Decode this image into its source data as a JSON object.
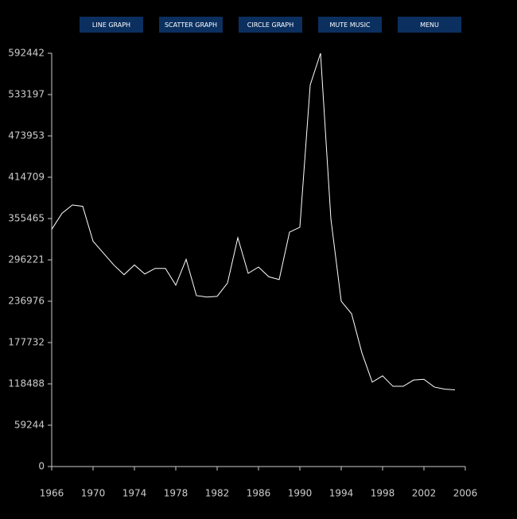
{
  "buttons": [
    "LINE GRAPH",
    "SCATTER GRAPH",
    "CIRCLE GRAPH",
    "MUTE MUSIC",
    "MENU"
  ],
  "chart_data": {
    "type": "line",
    "x": [
      1966,
      1967,
      1968,
      1969,
      1970,
      1971,
      1972,
      1973,
      1974,
      1975,
      1976,
      1977,
      1978,
      1979,
      1980,
      1981,
      1982,
      1983,
      1984,
      1985,
      1986,
      1987,
      1988,
      1989,
      1990,
      1991,
      1992,
      1993,
      1994,
      1995,
      1996,
      1997,
      1998,
      1999,
      2000,
      2001,
      2002,
      2003,
      2004,
      2005
    ],
    "values": [
      340000,
      363000,
      375000,
      373000,
      323000,
      306000,
      289000,
      275000,
      289000,
      276000,
      284000,
      284000,
      260000,
      297000,
      245000,
      243000,
      244000,
      263000,
      328000,
      277000,
      286000,
      272000,
      268000,
      336000,
      343000,
      547000,
      592442,
      355000,
      237000,
      219000,
      163000,
      121000,
      130000,
      115000,
      115000,
      124000,
      125000,
      114000,
      111000,
      110000
    ],
    "color": "#ffffff",
    "xlim": [
      1966,
      2006
    ],
    "xticks": [
      1966,
      1970,
      1974,
      1978,
      1982,
      1986,
      1990,
      1994,
      1998,
      2002,
      2006
    ],
    "ylim": [
      0,
      592442
    ],
    "yticks": [
      0,
      59244,
      118488,
      177732,
      236976,
      296221,
      355465,
      414709,
      473953,
      533197,
      592442
    ]
  }
}
